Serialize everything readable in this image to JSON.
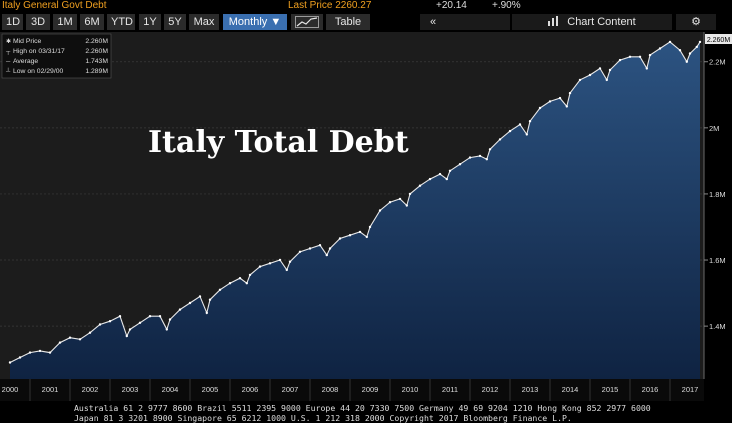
{
  "header": {
    "security": "Italy General Govt Debt",
    "last_price": "Last Price 2260.27",
    "change": "+20.14",
    "change_pct": "+.90%"
  },
  "toolbar": {
    "periods": [
      "1D",
      "3D",
      "1M",
      "6M",
      "YTD",
      "1Y",
      "5Y",
      "Max"
    ],
    "frequency": "Monthly ▼",
    "table_label": "Table",
    "back_label": "«",
    "chart_content_label": "Chart Content",
    "settings_label": "⚙"
  },
  "legend": {
    "items": [
      {
        "label": "Mid Price",
        "value": "2.260M"
      },
      {
        "label": "High on 03/31/17",
        "value": "2.260M"
      },
      {
        "label": "Average",
        "value": "1.743M"
      },
      {
        "label": "Low on 02/29/00",
        "value": "1.289M"
      }
    ]
  },
  "annotation": "Italy Total Debt",
  "last_value_tag": "2.260M",
  "chart_data": {
    "type": "area",
    "title": "",
    "xlabel": "",
    "ylabel": "",
    "x_ticks": [
      "2000",
      "2001",
      "2002",
      "2003",
      "2004",
      "2005",
      "2006",
      "2007",
      "2008",
      "2009",
      "2010",
      "2011",
      "2012",
      "2013",
      "2014",
      "2015",
      "2016",
      "2017"
    ],
    "y_ticks": [
      "1.4M",
      "1.6M",
      "1.8M",
      "2M",
      "2.2M"
    ],
    "y_tick_values": [
      1.4,
      1.6,
      1.8,
      2.0,
      2.2
    ],
    "xlim": [
      1999.75,
      2017.35
    ],
    "ylim": [
      1.24,
      2.29
    ],
    "series": [
      {
        "x": [
          2000.0,
          2000.25,
          2000.5,
          2000.75,
          2001.0,
          2001.25,
          2001.5,
          2001.75,
          2002.0,
          2002.25,
          2002.5,
          2002.75,
          2002.92,
          2003.0,
          2003.25,
          2003.5,
          2003.75,
          2003.92,
          2004.0,
          2004.25,
          2004.5,
          2004.75,
          2004.92,
          2005.0,
          2005.25,
          2005.5,
          2005.75,
          2005.92,
          2006.0,
          2006.25,
          2006.5,
          2006.75,
          2006.92,
          2007.0,
          2007.25,
          2007.5,
          2007.75,
          2007.92,
          2008.0,
          2008.25,
          2008.5,
          2008.75,
          2008.92,
          2009.0,
          2009.25,
          2009.5,
          2009.75,
          2009.92,
          2010.0,
          2010.25,
          2010.5,
          2010.75,
          2010.92,
          2011.0,
          2011.25,
          2011.5,
          2011.75,
          2011.92,
          2012.0,
          2012.25,
          2012.5,
          2012.75,
          2012.92,
          2013.0,
          2013.25,
          2013.5,
          2013.75,
          2013.92,
          2014.0,
          2014.25,
          2014.5,
          2014.75,
          2014.92,
          2015.0,
          2015.25,
          2015.5,
          2015.75,
          2015.92,
          2016.0,
          2016.25,
          2016.5,
          2016.75,
          2016.92,
          2017.0,
          2017.17,
          2017.25
        ],
        "values": [
          1.29,
          1.305,
          1.32,
          1.325,
          1.32,
          1.35,
          1.365,
          1.36,
          1.38,
          1.405,
          1.415,
          1.43,
          1.37,
          1.39,
          1.41,
          1.43,
          1.43,
          1.39,
          1.42,
          1.45,
          1.47,
          1.49,
          1.44,
          1.48,
          1.51,
          1.53,
          1.545,
          1.53,
          1.555,
          1.58,
          1.59,
          1.6,
          1.57,
          1.595,
          1.625,
          1.635,
          1.645,
          1.615,
          1.635,
          1.665,
          1.675,
          1.685,
          1.67,
          1.7,
          1.75,
          1.775,
          1.785,
          1.765,
          1.8,
          1.825,
          1.845,
          1.86,
          1.845,
          1.87,
          1.89,
          1.91,
          1.915,
          1.905,
          1.935,
          1.965,
          1.99,
          2.01,
          1.98,
          2.02,
          2.06,
          2.08,
          2.09,
          2.065,
          2.105,
          2.145,
          2.16,
          2.18,
          2.145,
          2.175,
          2.205,
          2.215,
          2.215,
          2.18,
          2.22,
          2.24,
          2.26,
          2.235,
          2.2,
          2.225,
          2.245,
          2.26
        ]
      }
    ],
    "grid": true,
    "legend_position": "top-left"
  },
  "footer": {
    "line1": "Australia 61 2 9777 8600 Brazil 5511 2395 9000 Europe 44 20 7330 7500 Germany 49 69 9204 1210 Hong Kong 852 2977 6000",
    "line2": "Japan 81 3 3201 8900         Singapore 65 6212 1000       U.S. 1 212 318 2000          Copyright 2017 Bloomberg Finance L.P."
  },
  "colors": {
    "price": "#f0a020",
    "selected": "#3a6fb0",
    "area_top": "#2c5381",
    "area_bottom": "#0f2342"
  }
}
